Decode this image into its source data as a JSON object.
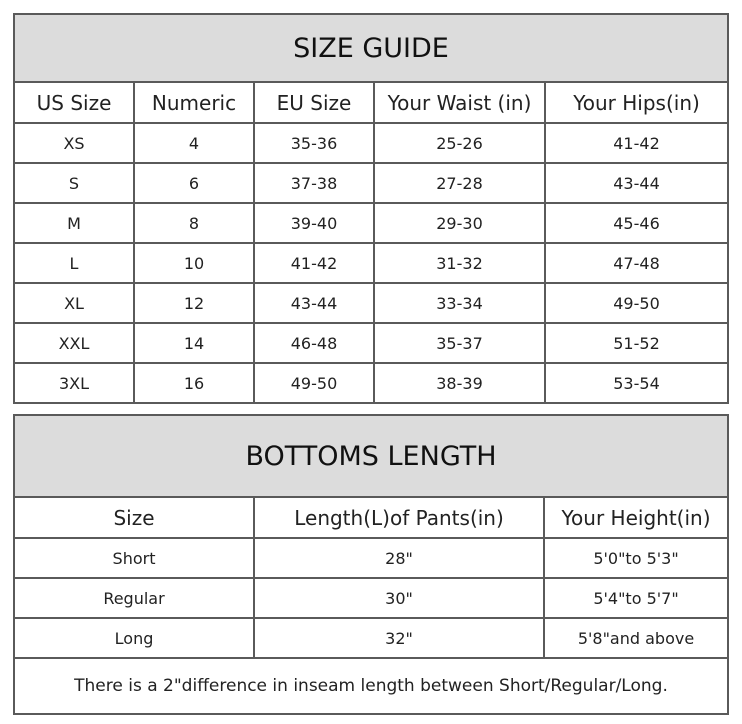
{
  "size_guide": {
    "title": "SIZE GUIDE",
    "headers": [
      "US Size",
      "Numeric",
      "EU Size",
      "Your Waist (in)",
      "Your Hips(in)"
    ],
    "rows": [
      [
        "XS",
        "4",
        "35-36",
        "25-26",
        "41-42"
      ],
      [
        "S",
        "6",
        "37-38",
        "27-28",
        "43-44"
      ],
      [
        "M",
        "8",
        "39-40",
        "29-30",
        "45-46"
      ],
      [
        "L",
        "10",
        "41-42",
        "31-32",
        "47-48"
      ],
      [
        "XL",
        "12",
        "43-44",
        "33-34",
        "49-50"
      ],
      [
        "XXL",
        "14",
        "46-48",
        "35-37",
        "51-52"
      ],
      [
        "3XL",
        "16",
        "49-50",
        "38-39",
        "53-54"
      ]
    ]
  },
  "bottoms_length": {
    "title": "BOTTOMS LENGTH",
    "headers": [
      "Size",
      "Length(L)of Pants(in)",
      "Your Height(in)"
    ],
    "rows": [
      [
        "Short",
        "28\"",
        "5'0\"to 5'3\""
      ],
      [
        "Regular",
        "30\"",
        "5'4\"to 5'7\""
      ],
      [
        "Long",
        "32\"",
        "5'8\"and above"
      ]
    ],
    "note": "There is a 2\"difference in inseam length between Short/Regular/Long."
  }
}
